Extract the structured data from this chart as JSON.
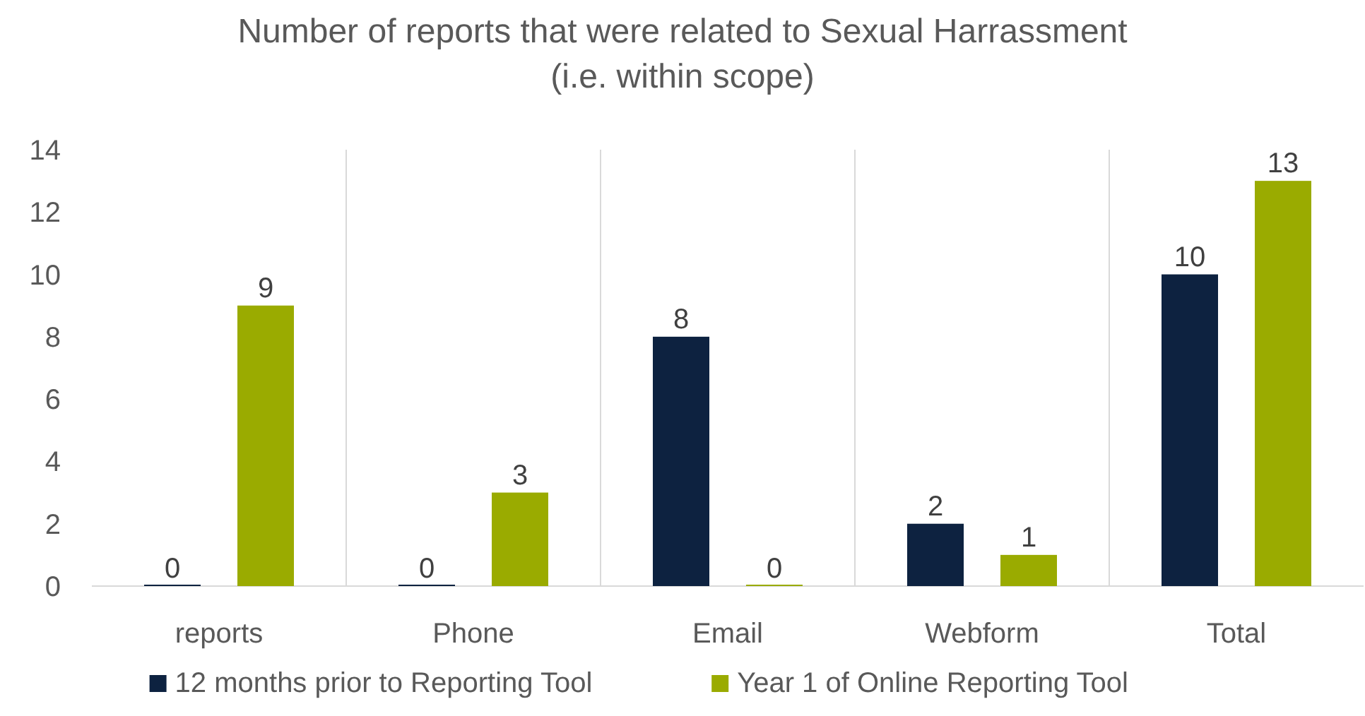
{
  "chart_data": {
    "type": "bar",
    "title": "Number of reports that were related to Sexual Harrassment (i.e. within scope)",
    "categories": [
      "reports",
      "Phone",
      "Email",
      "Webform",
      "Total"
    ],
    "series": [
      {
        "name": "12 months prior to Reporting Tool",
        "color": "#0d2240",
        "values": [
          0,
          0,
          8,
          2,
          10
        ]
      },
      {
        "name": "Year 1 of Online Reporting Tool",
        "color": "#9aab00",
        "values": [
          9,
          3,
          0,
          1,
          13
        ]
      }
    ],
    "ylim": [
      0,
      14
    ],
    "yticks": [
      0,
      2,
      4,
      6,
      8,
      10,
      12,
      14
    ],
    "grid": "x",
    "legend": "bottom",
    "data_labels": true
  }
}
